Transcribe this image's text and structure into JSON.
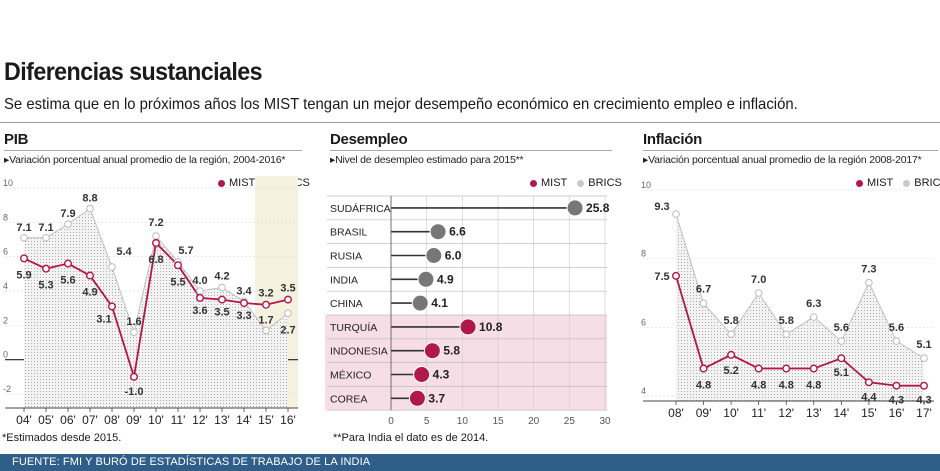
{
  "page": {
    "title": "Diferencias sustanciales",
    "subtitle": "Se estima que en lo próximos años los MIST tengan un mejor desempeño económico en crecimiento empleo e inflación.",
    "note_left": "*Estimados desde 2015.",
    "note_mid": "**Para India el dato es de 2014.",
    "source": "FUENTE: FMI Y BURÓ DE ESTADÍSTICAS DE TRABAJO DE LA INDIA"
  },
  "colors": {
    "mist": "#b0174a",
    "brics": "#c9c9c9",
    "forecast_bg": "#f4f1df",
    "mist_band": "#f6dde6",
    "source_bar": "#2f5e88"
  },
  "legend": {
    "mist": "MIST",
    "brics": "BRICS"
  },
  "chart_data": [
    {
      "id": "pib",
      "type": "line",
      "title": "PIB",
      "subtitle": "Variación porcentual anual promedio de la región, 2004-2016*",
      "categories": [
        "04'",
        "05'",
        "06'",
        "07'",
        "08'",
        "09'",
        "10'",
        "11'",
        "12'",
        "13'",
        "14'",
        "15'",
        "16'"
      ],
      "yticks": [
        10,
        8,
        6,
        4,
        2,
        0,
        -2
      ],
      "ylim": [
        -2,
        10
      ],
      "forecast_from_index": 11,
      "series": [
        {
          "name": "MIST",
          "values": [
            5.9,
            5.3,
            5.6,
            4.9,
            3.1,
            -1.0,
            6.8,
            5.5,
            3.6,
            3.5,
            3.3,
            3.2,
            3.5
          ]
        },
        {
          "name": "BRICS",
          "values": [
            7.1,
            7.1,
            7.9,
            8.8,
            5.4,
            1.6,
            7.2,
            5.7,
            4.0,
            4.2,
            3.4,
            1.7,
            2.7
          ]
        }
      ]
    },
    {
      "id": "desempleo",
      "type": "bar",
      "title": "Desempleo",
      "subtitle": "Nivel de desempleo estimado para 2015**",
      "categories": [
        "SUDÁFRICA",
        "BRASIL",
        "RUSIA",
        "INDIA",
        "CHINA",
        "TURQUÍA",
        "INDONESIA",
        "MÉXICO",
        "COREA"
      ],
      "values": [
        25.8,
        6.6,
        6.0,
        4.9,
        4.1,
        10.8,
        5.8,
        4.3,
        3.7
      ],
      "groups": [
        "BRICS",
        "BRICS",
        "BRICS",
        "BRICS",
        "BRICS",
        "MIST",
        "MIST",
        "MIST",
        "MIST"
      ],
      "xticks": [
        0,
        5,
        10,
        15,
        20,
        25,
        30
      ],
      "xlim": [
        0,
        30
      ]
    },
    {
      "id": "inflacion",
      "type": "line",
      "title": "Inflación",
      "subtitle": "Variación porcentual anual promedio de la región 2008-2017*",
      "categories": [
        "08'",
        "09'",
        "10'",
        "11'",
        "12'",
        "13'",
        "14'",
        "15'",
        "16'",
        "17'"
      ],
      "yticks": [
        10,
        8,
        6,
        4
      ],
      "ylim": [
        4,
        10
      ],
      "series": [
        {
          "name": "MIST",
          "values": [
            7.5,
            4.8,
            5.2,
            4.8,
            4.8,
            4.8,
            5.1,
            4.4,
            4.3,
            4.3
          ]
        },
        {
          "name": "BRICS",
          "values": [
            9.3,
            6.7,
            5.8,
            7.0,
            5.8,
            6.3,
            5.6,
            7.3,
            5.6,
            5.1
          ]
        }
      ]
    }
  ]
}
